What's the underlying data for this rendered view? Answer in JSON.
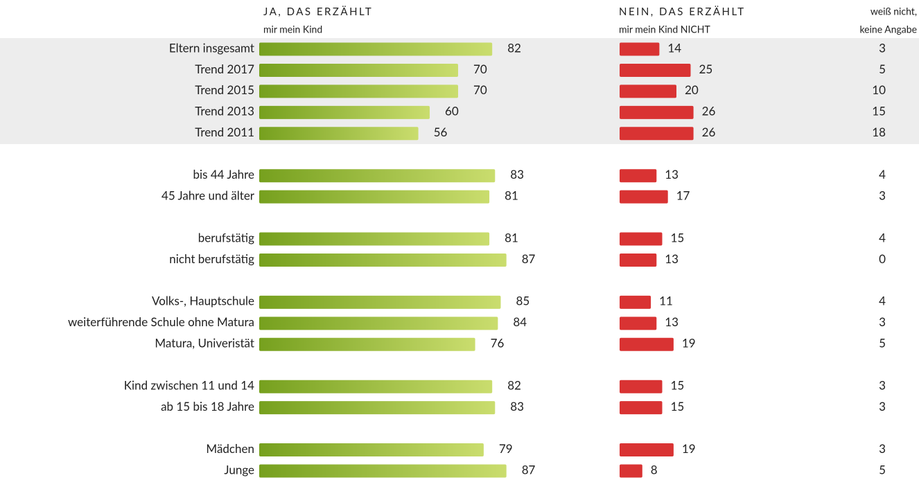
{
  "chart_data": {
    "type": "bar",
    "categories": [
      "Eltern insgesamt",
      "Trend 2017",
      "Trend 2015",
      "Trend 2013",
      "Trend 2011",
      null,
      "bis 44 Jahre",
      "45 Jahre und älter",
      null,
      "berufstätig",
      "nicht berufstätig",
      null,
      "Volks-, Hauptschule",
      "weiterführende Schule ohne Matura",
      "Matura, Univeristät",
      null,
      "Kind zwischen 11 und 14",
      "ab 15 bis 18 Jahre",
      null,
      "Mädchen",
      "Junge"
    ],
    "series": [
      {
        "name": "JA, DAS ERZÄHLT",
        "subname": "mir mein Kind",
        "color": "#7aa424",
        "values": [
          82,
          70,
          70,
          60,
          56,
          null,
          83,
          81,
          null,
          81,
          87,
          null,
          85,
          84,
          76,
          null,
          82,
          83,
          null,
          79,
          87
        ]
      },
      {
        "name": "NEIN, DAS ERZÄHLT",
        "subname": "mir mein Kind NICHT",
        "color": "#d93333",
        "values": [
          14,
          25,
          20,
          26,
          26,
          null,
          13,
          17,
          null,
          15,
          13,
          null,
          11,
          13,
          19,
          null,
          15,
          15,
          null,
          19,
          8
        ]
      },
      {
        "name": "weiß nicht,",
        "subname": "keine Angabe",
        "values": [
          3,
          5,
          10,
          15,
          18,
          null,
          4,
          3,
          null,
          4,
          0,
          null,
          4,
          3,
          5,
          null,
          3,
          3,
          null,
          3,
          5
        ]
      }
    ]
  }
}
